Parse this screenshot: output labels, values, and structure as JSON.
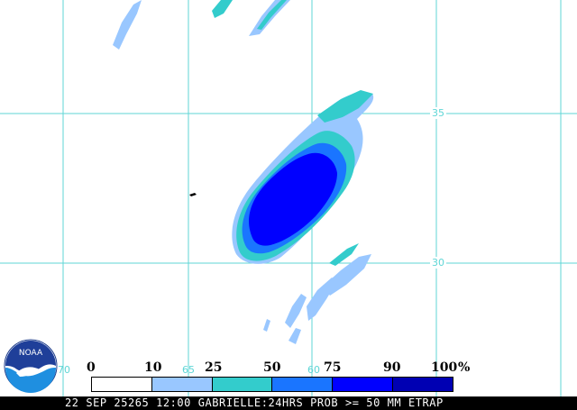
{
  "footer": {
    "caption": "22 SEP 25265 12:00 GABRIELLE:24HRS PROB >= 50 MM ETRAP"
  },
  "grid": {
    "lat_labels": [
      "35",
      "30"
    ],
    "lon_labels": [
      "70",
      "65",
      "60"
    ]
  },
  "legend": {
    "ticks": [
      "0",
      "10",
      "25",
      "50",
      "75",
      "90",
      "100"
    ],
    "unit": "%",
    "colors": [
      "#ffffff",
      "#99c7ff",
      "#33cccc",
      "#1a75ff",
      "#0000ff",
      "#0000b3"
    ]
  },
  "logo": {
    "text": "NOAA"
  },
  "colors": {
    "grid": "#5fd6d6",
    "bin_10_25": "#99c7ff",
    "bin_25_50": "#33cccc",
    "bin_50_75": "#1a75ff",
    "bin_75_90": "#0000ff",
    "bin_90_100": "#0000b3"
  }
}
